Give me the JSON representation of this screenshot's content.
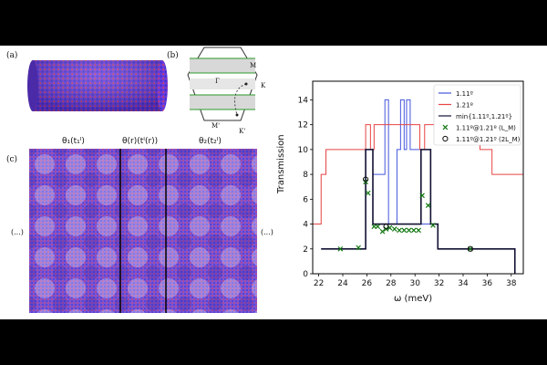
{
  "panels": {
    "a": {
      "label": "(a)"
    },
    "b": {
      "label": "(b)",
      "points": {
        "M": "M",
        "Gamma": "Γ",
        "K": "K",
        "M_prime": "M'",
        "K_prime": "K'"
      }
    },
    "c": {
      "label": "(c)",
      "region_left": "θ₁(t₁ᴵ)",
      "region_mid": "θ(r)(tᴵ(r))",
      "region_right": "θ₂(t₂ᴵ)",
      "ellipsis_left": "(...)",
      "ellipsis_right": "(...)"
    }
  },
  "chart_data": {
    "type": "line",
    "xlabel": "ω (meV)",
    "ylabel": "Transmission",
    "xlim": [
      21.5,
      39
    ],
    "ylim": [
      0,
      15.5
    ],
    "xticks": [
      22,
      24,
      26,
      28,
      30,
      32,
      34,
      36,
      38
    ],
    "yticks": [
      0,
      2,
      4,
      6,
      8,
      10,
      12,
      14
    ],
    "legend_position": "top-right",
    "series": [
      {
        "name": "1.11º",
        "kind": "step",
        "color": "#4455dd",
        "x": [
          22.2,
          25.6,
          25.9,
          26.5,
          26.5,
          27.2,
          27.5,
          27.8,
          28.2,
          28.5,
          28.8,
          29.1,
          29.3,
          29.6,
          30.5,
          30.5,
          31.3,
          31.9,
          38.3
        ],
        "y": [
          2,
          2,
          10,
          10,
          8,
          8,
          14,
          4,
          4,
          10,
          14,
          10,
          14,
          10,
          10,
          4,
          4,
          2,
          0
        ]
      },
      {
        "name": "1.21º",
        "kind": "step",
        "color": "#e84444",
        "x": [
          21.5,
          22.2,
          22.6,
          25.6,
          25.9,
          26.3,
          26.6,
          30.4,
          30.8,
          35.4,
          36.4,
          39
        ],
        "y": [
          4,
          8,
          10,
          10,
          12,
          10,
          12,
          10,
          12,
          10,
          8,
          4
        ]
      },
      {
        "name": "min{1.11º,1.21º}",
        "kind": "step",
        "color": "#111133",
        "x": [
          22.2,
          25.6,
          25.9,
          26.5,
          30.5,
          31.3,
          31.9,
          38.3
        ],
        "y": [
          2,
          2,
          10,
          4,
          10,
          4,
          2,
          0
        ]
      },
      {
        "name": "1.11º@1.21º (L_M)",
        "kind": "marker",
        "marker": "x",
        "color": "#117711",
        "x": [
          23.8,
          25.3,
          25.9,
          26.1,
          26.6,
          26.9,
          27.3,
          27.6,
          27.9,
          28.3,
          28.7,
          29.1,
          29.5,
          29.9,
          30.3,
          30.6,
          31.1,
          31.5,
          34.6
        ],
        "y": [
          2.0,
          2.1,
          7.4,
          6.5,
          3.8,
          3.8,
          3.4,
          3.6,
          3.7,
          3.6,
          3.5,
          3.5,
          3.5,
          3.5,
          3.5,
          6.3,
          5.5,
          3.9,
          2.0
        ]
      },
      {
        "name": "1.11º@1.21º (2L_M)",
        "kind": "marker",
        "marker": "circle",
        "color": "#111111",
        "x": [
          25.9,
          27.6,
          34.6
        ],
        "y": [
          7.6,
          3.8,
          2.0
        ]
      }
    ]
  }
}
